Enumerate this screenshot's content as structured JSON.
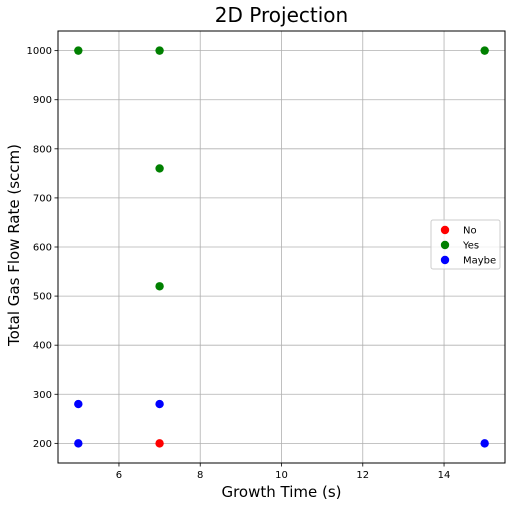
{
  "chart_data": {
    "type": "scatter",
    "title": "2D Projection",
    "xlabel": "Growth Time (s)",
    "ylabel": "Total Gas Flow Rate (sccm)",
    "xlim": [
      4.5,
      15.5
    ],
    "ylim": [
      160,
      1040
    ],
    "xticks": [
      6,
      8,
      10,
      12,
      14
    ],
    "yticks": [
      200,
      300,
      400,
      500,
      600,
      700,
      800,
      900,
      1000
    ],
    "grid": true,
    "legend_position": "center-right",
    "series": [
      {
        "name": "No",
        "color": "#ff0000",
        "points": [
          [
            7,
            200
          ]
        ]
      },
      {
        "name": "Yes",
        "color": "#008000",
        "points": [
          [
            5,
            1000
          ],
          [
            7,
            1000
          ],
          [
            15,
            1000
          ],
          [
            7,
            760
          ],
          [
            7,
            520
          ]
        ]
      },
      {
        "name": "Maybe",
        "color": "#0000ff",
        "points": [
          [
            5,
            280
          ],
          [
            7,
            280
          ],
          [
            5,
            200
          ],
          [
            15,
            200
          ]
        ]
      }
    ]
  }
}
